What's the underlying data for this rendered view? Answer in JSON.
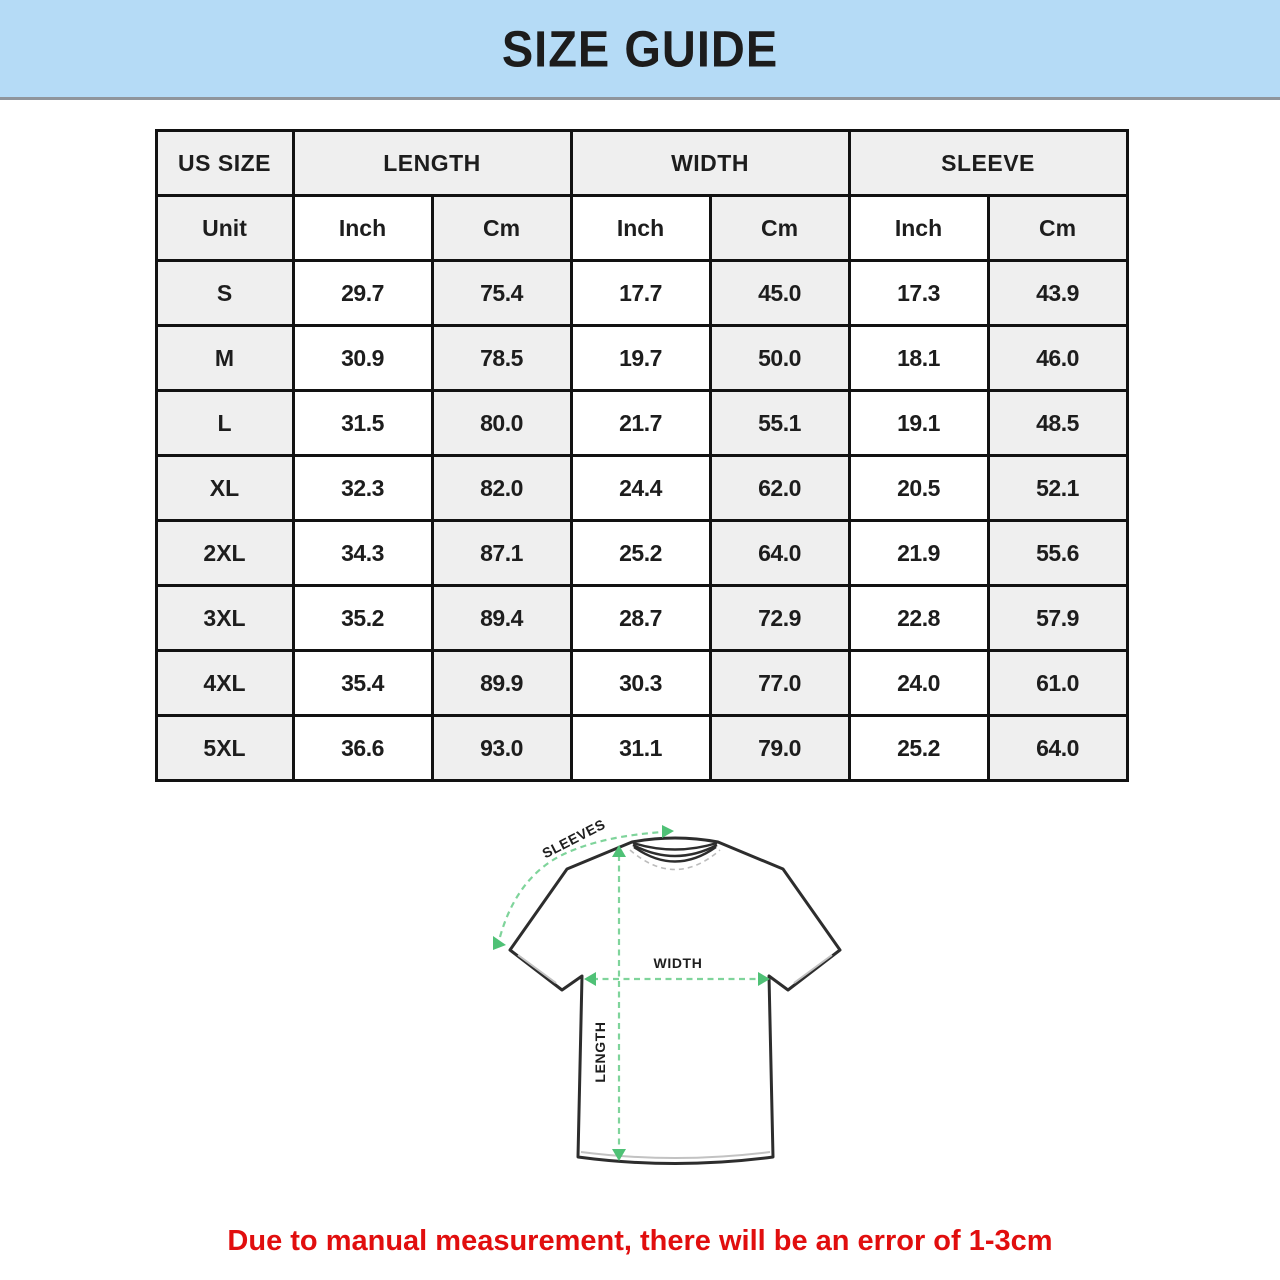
{
  "banner": {
    "title": "SIZE GUIDE",
    "bg_color": "#b5dbf6"
  },
  "table": {
    "group_headers": [
      {
        "label": "US SIZE",
        "span": 1
      },
      {
        "label": "LENGTH",
        "span": 2
      },
      {
        "label": "WIDTH",
        "span": 2
      },
      {
        "label": "SLEEVE",
        "span": 2
      }
    ],
    "unit_row": [
      "Unit",
      "Inch",
      "Cm",
      "Inch",
      "Cm",
      "Inch",
      "Cm"
    ],
    "rows": [
      {
        "size": "S",
        "values": [
          "29.7",
          "75.4",
          "17.7",
          "45.0",
          "17.3",
          "43.9"
        ]
      },
      {
        "size": "M",
        "values": [
          "30.9",
          "78.5",
          "19.7",
          "50.0",
          "18.1",
          "46.0"
        ]
      },
      {
        "size": "L",
        "values": [
          "31.5",
          "80.0",
          "21.7",
          "55.1",
          "19.1",
          "48.5"
        ]
      },
      {
        "size": "XL",
        "values": [
          "32.3",
          "82.0",
          "24.4",
          "62.0",
          "20.5",
          "52.1"
        ]
      },
      {
        "size": "2XL",
        "values": [
          "34.3",
          "87.1",
          "25.2",
          "64.0",
          "21.9",
          "55.6"
        ]
      },
      {
        "size": "3XL",
        "values": [
          "35.2",
          "89.4",
          "28.7",
          "72.9",
          "22.8",
          "57.9"
        ]
      },
      {
        "size": "4XL",
        "values": [
          "35.4",
          "89.9",
          "30.3",
          "77.0",
          "24.0",
          "61.0"
        ]
      },
      {
        "size": "5XL",
        "values": [
          "36.6",
          "93.0",
          "31.1",
          "79.0",
          "25.2",
          "64.0"
        ]
      }
    ],
    "header_bg": "#efefef",
    "alt_cell_bg": "#efefef"
  },
  "diagram": {
    "labels": {
      "sleeves": "SLEEVES",
      "width": "WIDTH",
      "length": "LENGTH"
    },
    "arrow_line_color": "#7fd49b",
    "arrow_head_color": "#4fc176",
    "outline_color": "#2d2d2d"
  },
  "footnote": {
    "text": "Due to manual measurement, there will be an error of 1-3cm",
    "color": "#e10e0e"
  }
}
